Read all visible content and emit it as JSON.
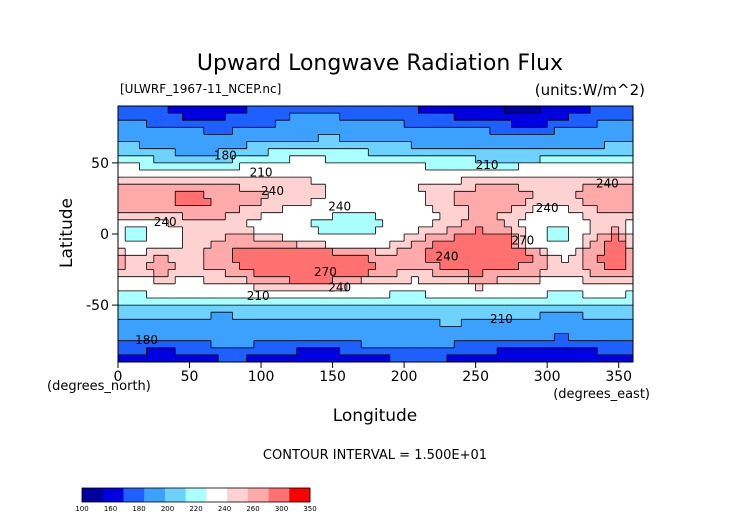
{
  "chart_data": {
    "type": "heatmap",
    "title": "Upward Longwave Radiation Flux",
    "file_label": "[ULWRF_1967-11_NCEP.nc]",
    "units_label": "(units:W/m^2)",
    "xlabel": "Longitude",
    "ylabel": "Latitude",
    "x_unit_label": "(degrees_east)",
    "y_unit_label": "(degrees_north)",
    "xlim": [
      0,
      360
    ],
    "ylim": [
      -90,
      90
    ],
    "x_ticks": [
      0,
      50,
      100,
      150,
      200,
      250,
      300,
      350
    ],
    "y_ticks": [
      -50,
      0,
      50
    ],
    "contour_interval_text": "CONTOUR INTERVAL = 1.500E+01",
    "contour_labels": [
      {
        "text": "180",
        "lon": 75,
        "lat": 55
      },
      {
        "text": "210",
        "lon": 100,
        "lat": 43
      },
      {
        "text": "240",
        "lon": 108,
        "lat": 30
      },
      {
        "text": "240",
        "lon": 33,
        "lat": 8
      },
      {
        "text": "240",
        "lon": 155,
        "lat": 19
      },
      {
        "text": "240",
        "lon": 230,
        "lat": -16
      },
      {
        "text": "270",
        "lon": 145,
        "lat": -27
      },
      {
        "text": "240",
        "lon": 155,
        "lat": -38
      },
      {
        "text": "210",
        "lon": 98,
        "lat": -44
      },
      {
        "text": "210",
        "lon": 258,
        "lat": 48
      },
      {
        "text": "240",
        "lon": 342,
        "lat": 35
      },
      {
        "text": "240",
        "lon": 300,
        "lat": 18
      },
      {
        "text": "210",
        "lon": 268,
        "lat": -60
      },
      {
        "text": "180",
        "lon": 20,
        "lat": -75
      },
      {
        "text": "270",
        "lon": 283,
        "lat": -5
      }
    ],
    "colorbar": {
      "ticks": [
        "100",
        "160",
        "180",
        "200",
        "220",
        "240",
        "260",
        "300",
        "350"
      ],
      "colors": [
        "#0000a0",
        "#0000e0",
        "#1e5fff",
        "#3ca0ff",
        "#6ed2ff",
        "#aaffff",
        "#ffffff",
        "#ffd2d2",
        "#ffaaaa",
        "#ff7070",
        "#ff0000"
      ]
    },
    "field": {
      "row_lats": [
        85,
        75,
        65,
        55,
        45,
        35,
        25,
        15,
        5,
        -5,
        -15,
        -25,
        -35,
        -45,
        -55,
        -65,
        -75,
        -85
      ],
      "lon_step": 20,
      "rows": [
        [
          170,
          172,
          165,
          168,
          170,
          175,
          180,
          178,
          175,
          172,
          170,
          168,
          165,
          160,
          158,
          165,
          170,
          172
        ],
        [
          185,
          180,
          178,
          175,
          176,
          182,
          188,
          190,
          186,
          184,
          182,
          180,
          178,
          175,
          170,
          178,
          182,
          185
        ],
        [
          198,
          195,
          190,
          192,
          196,
          200,
          202,
          205,
          200,
          198,
          196,
          195,
          192,
          190,
          188,
          192,
          196,
          198
        ],
        [
          208,
          205,
          200,
          202,
          210,
          214,
          218,
          216,
          214,
          212,
          210,
          208,
          206,
          205,
          204,
          208,
          210,
          208
        ],
        [
          225,
          222,
          218,
          220,
          225,
          228,
          232,
          230,
          228,
          226,
          224,
          222,
          222,
          224,
          226,
          228,
          230,
          228
        ],
        [
          248,
          250,
          252,
          250,
          246,
          244,
          244,
          240,
          236,
          238,
          240,
          244,
          248,
          250,
          246,
          244,
          250,
          252
        ],
        [
          258,
          262,
          264,
          262,
          256,
          250,
          246,
          236,
          226,
          230,
          238,
          248,
          258,
          262,
          250,
          244,
          256,
          262
        ],
        [
          248,
          250,
          254,
          252,
          246,
          238,
          232,
          222,
          218,
          224,
          234,
          242,
          252,
          248,
          236,
          232,
          246,
          250
        ],
        [
          214,
          232,
          246,
          248,
          238,
          226,
          218,
          214,
          212,
          222,
          236,
          244,
          256,
          252,
          232,
          214,
          240,
          250
        ],
        [
          212,
          224,
          242,
          250,
          256,
          248,
          236,
          226,
          224,
          236,
          252,
          262,
          276,
          270,
          226,
          212,
          246,
          268
        ],
        [
          242,
          252,
          244,
          256,
          270,
          280,
          284,
          272,
          262,
          252,
          258,
          272,
          282,
          276,
          262,
          236,
          258,
          268
        ],
        [
          248,
          256,
          246,
          252,
          262,
          274,
          288,
          284,
          270,
          256,
          250,
          258,
          266,
          260,
          256,
          242,
          254,
          262
        ],
        [
          232,
          236,
          236,
          238,
          246,
          250,
          256,
          252,
          242,
          238,
          236,
          240,
          248,
          246,
          238,
          232,
          238,
          240
        ],
        [
          214,
          216,
          215,
          214,
          218,
          220,
          222,
          220,
          216,
          214,
          214,
          216,
          218,
          218,
          216,
          214,
          215,
          214
        ],
        [
          204,
          203,
          204,
          202,
          204,
          205,
          206,
          205,
          204,
          203,
          202,
          202,
          204,
          204,
          203,
          202,
          203,
          204
        ],
        [
          196,
          192,
          194,
          192,
          190,
          192,
          196,
          196,
          194,
          196,
          198,
          200,
          198,
          196,
          192,
          190,
          192,
          195
        ],
        [
          182,
          178,
          180,
          185,
          184,
          182,
          180,
          182,
          184,
          186,
          186,
          184,
          182,
          180,
          178,
          176,
          180,
          182
        ],
        [
          168,
          166,
          168,
          170,
          170,
          168,
          166,
          165,
          168,
          170,
          172,
          170,
          168,
          166,
          165,
          164,
          166,
          168
        ]
      ]
    }
  }
}
